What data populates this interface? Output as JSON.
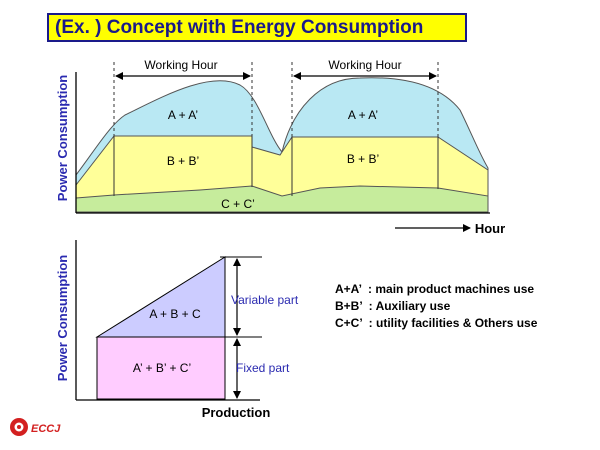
{
  "title": "(Ex. ) Concept with Energy Consumption",
  "top_chart": {
    "ylabel": "Power Consumption",
    "xlabel": "Hour",
    "working_hour_1": "Working Hour",
    "working_hour_2": "Working Hour",
    "band_a_1": "A + A’",
    "band_a_2": "A + A’",
    "band_b_1": "B + B’",
    "band_b_2": "B + B’",
    "band_c": "C + C’"
  },
  "bottom_chart": {
    "ylabel": "Power Consumption",
    "xlabel": "Production",
    "variable_label": "A + B + C",
    "fixed_label": "A’ + B’ + C’",
    "variable_part": "Variable part",
    "fixed_part": "Fixed part"
  },
  "legend": {
    "line1": "A+A’  : main product machines use",
    "line2": "B+B’  : Auxiliary use",
    "line3": "C+C’  : utility facilities & Others use"
  },
  "logo": "ECCJ",
  "colors": {
    "title_bg": "#ffff00",
    "title_text": "#1a1a8a",
    "band_a": "#b9e8f3",
    "band_b": "#ffff99",
    "band_c": "#c6ec9c",
    "variable_fill": "#ccccff",
    "fixed_fill": "#ffccff",
    "axis_label": "#2a2ab0"
  }
}
